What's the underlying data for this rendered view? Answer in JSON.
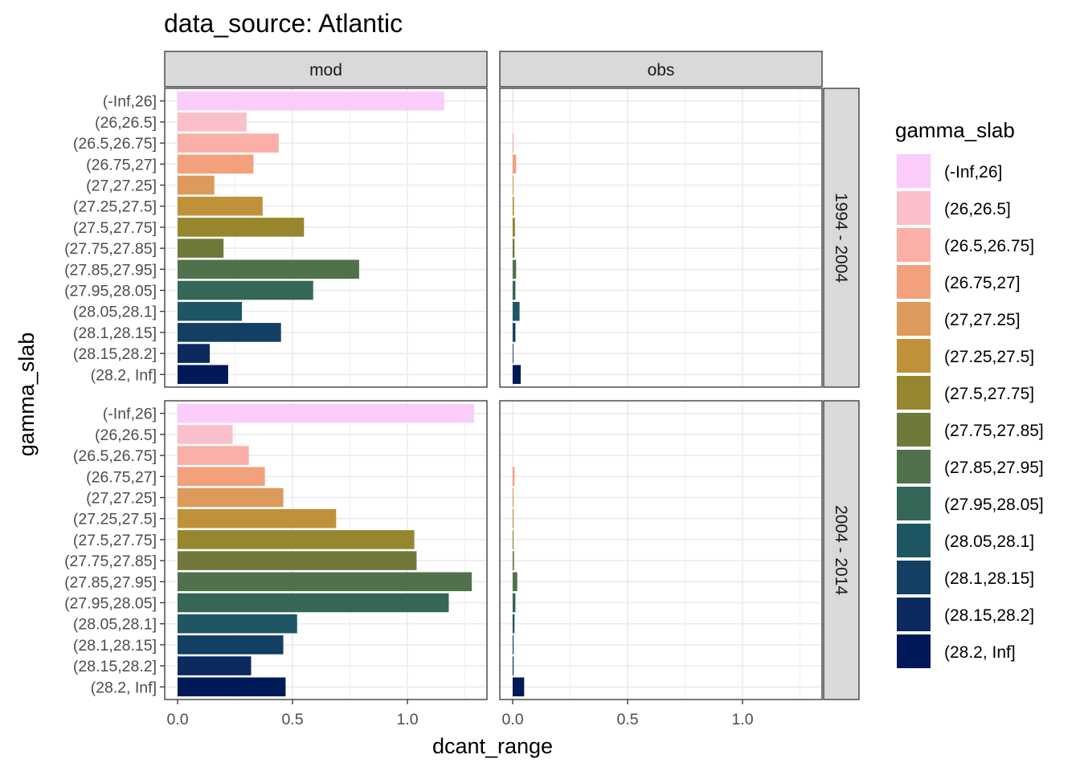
{
  "chart_data": {
    "type": "bar",
    "orientation": "horizontal",
    "title": "data_source: Atlantic",
    "xlabel": "dcant_range",
    "ylabel": "gamma_slab",
    "xlim": [
      0,
      1.3
    ],
    "x_ticks": [
      "0.0",
      "0.5",
      "1.0"
    ],
    "grid": true,
    "legend": {
      "title": "gamma_slab",
      "placement": "right"
    },
    "col_facets": [
      "mod",
      "obs"
    ],
    "row_facets": [
      "1994 - 2004",
      "2004 - 2014"
    ],
    "categories": [
      "(-Inf,26]",
      "(26,26.5]",
      "(26.5,26.75]",
      "(26.75,27]",
      "(27,27.25]",
      "(27.25,27.5]",
      "(27.5,27.75]",
      "(27.75,27.85]",
      "(27.85,27.95]",
      "(27.95,28.05]",
      "(28.05,28.1]",
      "(28.1,28.15]",
      "(28.15,28.2]",
      "(28.2, Inf]"
    ],
    "colors": [
      "#F9CCF9",
      "#FBBFCC",
      "#FBAFA6",
      "#F3A07C",
      "#DD9A5A",
      "#BF9239",
      "#96872F",
      "#6F7A3A",
      "#51714C",
      "#346755",
      "#1E5664",
      "#133F62",
      "#0C2A60",
      "#001959"
    ],
    "panels": [
      {
        "col": "mod",
        "row": "1994 - 2004",
        "values": [
          1.16,
          0.3,
          0.44,
          0.33,
          0.16,
          0.37,
          0.55,
          0.2,
          0.79,
          0.59,
          0.28,
          0.45,
          0.14,
          0.22
        ]
      },
      {
        "col": "obs",
        "row": "1994 - 2004",
        "values": [
          0.003,
          0.0,
          0.004,
          0.015,
          0.004,
          0.006,
          0.01,
          0.008,
          0.015,
          0.012,
          0.03,
          0.012,
          0.003,
          0.035
        ]
      },
      {
        "col": "mod",
        "row": "2004 - 2014",
        "values": [
          1.29,
          0.24,
          0.31,
          0.38,
          0.46,
          0.69,
          1.03,
          1.04,
          1.28,
          1.18,
          0.52,
          0.46,
          0.32,
          0.47
        ]
      },
      {
        "col": "obs",
        "row": "2004 - 2014",
        "values": [
          0.0,
          0.0,
          0.0,
          0.008,
          0.004,
          0.004,
          0.004,
          0.006,
          0.02,
          0.012,
          0.008,
          0.004,
          0.004,
          0.05
        ]
      }
    ]
  }
}
